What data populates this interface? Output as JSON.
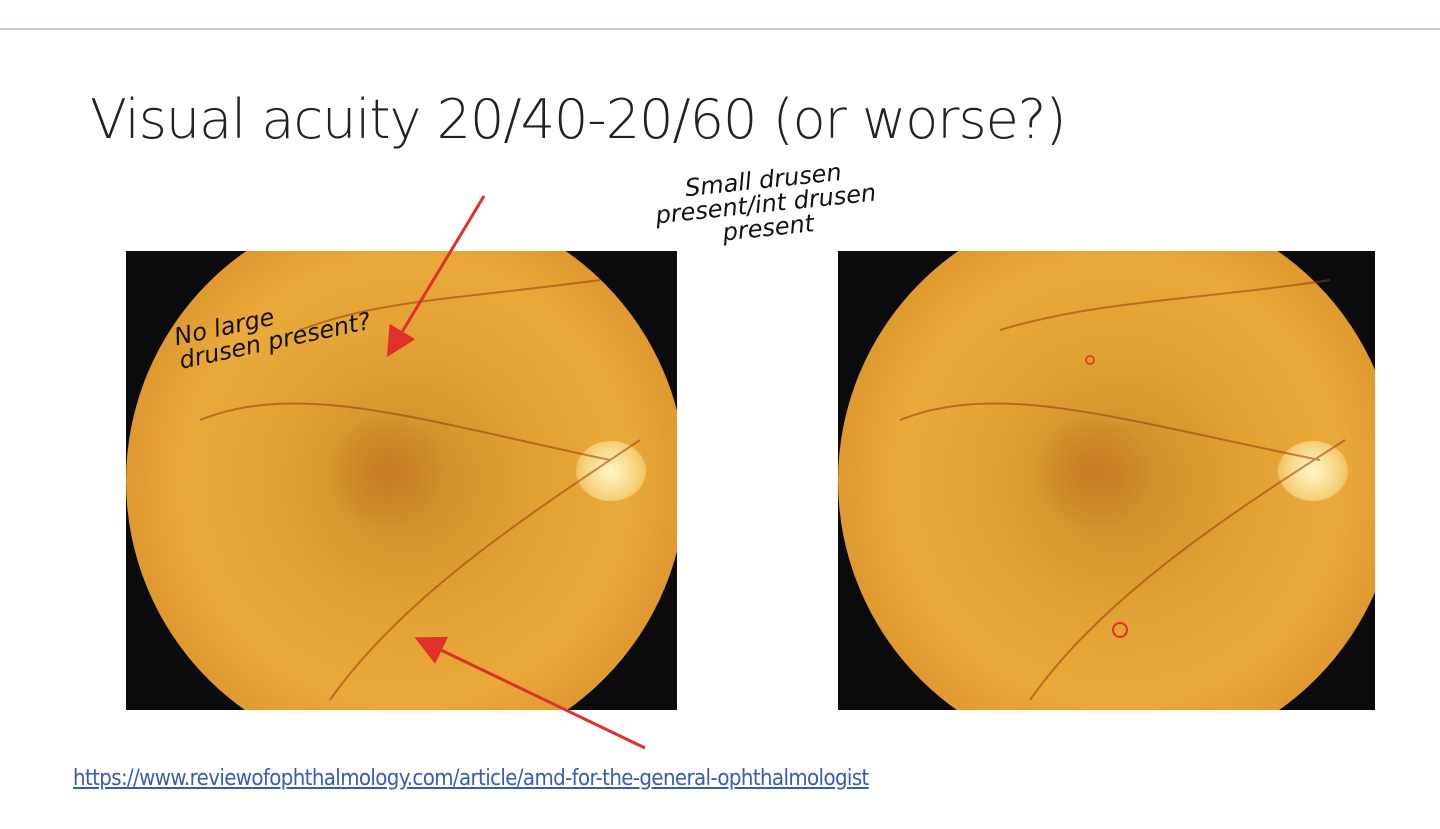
{
  "slide": {
    "title": "Visual acuity 20/40-20/60 (or worse?)",
    "annotations": {
      "left_note": [
        "No large",
        "drusen present?"
      ],
      "top_note": [
        "Small drusen",
        "present/int drusen",
        "present"
      ]
    },
    "images": [
      {
        "alt": "fundus photograph with drusen (annotated)"
      },
      {
        "alt": "fundus photograph with drusen (circled)"
      }
    ],
    "source_link": "https://www.reviewofophthalmology.com/article/amd-for-the-general-ophthalmologist",
    "colors": {
      "accent_rule": "#c3cce0",
      "annotation_red": "#e0302a",
      "link": "#3a5bb4"
    }
  }
}
